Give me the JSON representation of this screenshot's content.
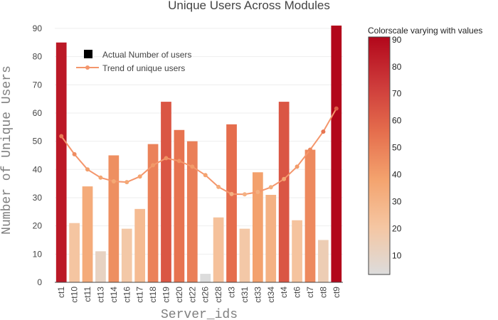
{
  "chart_data": {
    "type": "bar",
    "title": "Unique Users Across Modules",
    "xlabel": "Server_ids",
    "ylabel": "Number of Unique Users",
    "ylim": [
      0,
      92
    ],
    "yticks": [
      0,
      10,
      20,
      30,
      40,
      50,
      60,
      70,
      80,
      90
    ],
    "grid": true,
    "legend_position": "top-left",
    "categories": [
      "ct1",
      "ct10",
      "ct11",
      "ct13",
      "ct14",
      "ct16",
      "ct17",
      "ct18",
      "ct19",
      "ct20",
      "ct22",
      "ct26",
      "ct28",
      "ct3",
      "ct31",
      "ct33",
      "ct34",
      "ct4",
      "ct6",
      "ct7",
      "ct8",
      "ct9"
    ],
    "series": [
      {
        "name": "Actual Number of users",
        "type": "bar",
        "values": [
          85,
          21,
          34,
          11,
          45,
          19,
          26,
          49,
          64,
          54,
          50,
          3,
          23,
          56,
          19,
          39,
          31,
          64,
          22,
          47,
          15,
          91
        ]
      },
      {
        "name": "Trend of unique users",
        "type": "line",
        "values": [
          51.8,
          45.4,
          40.0,
          37.1,
          35.8,
          35.5,
          37.5,
          41.5,
          44.0,
          43.0,
          41.0,
          38.0,
          33.8,
          31.3,
          31.2,
          32.0,
          33.7,
          36.6,
          41.0,
          47.0,
          53.4,
          61.6
        ]
      }
    ],
    "colorscale": {
      "title": "Colorscale varying with values",
      "min": 3,
      "max": 91,
      "ticks": [
        10,
        20,
        30,
        40,
        50,
        60,
        70,
        80,
        90
      ],
      "stops": [
        "#dcdcdc",
        "#f5c6a2",
        "#f4a36e",
        "#e56e4d",
        "#cd3a3a",
        "#b2071b"
      ]
    },
    "legend_marker_colors": {
      "bar": "#000000",
      "line": "#f4966c"
    }
  }
}
